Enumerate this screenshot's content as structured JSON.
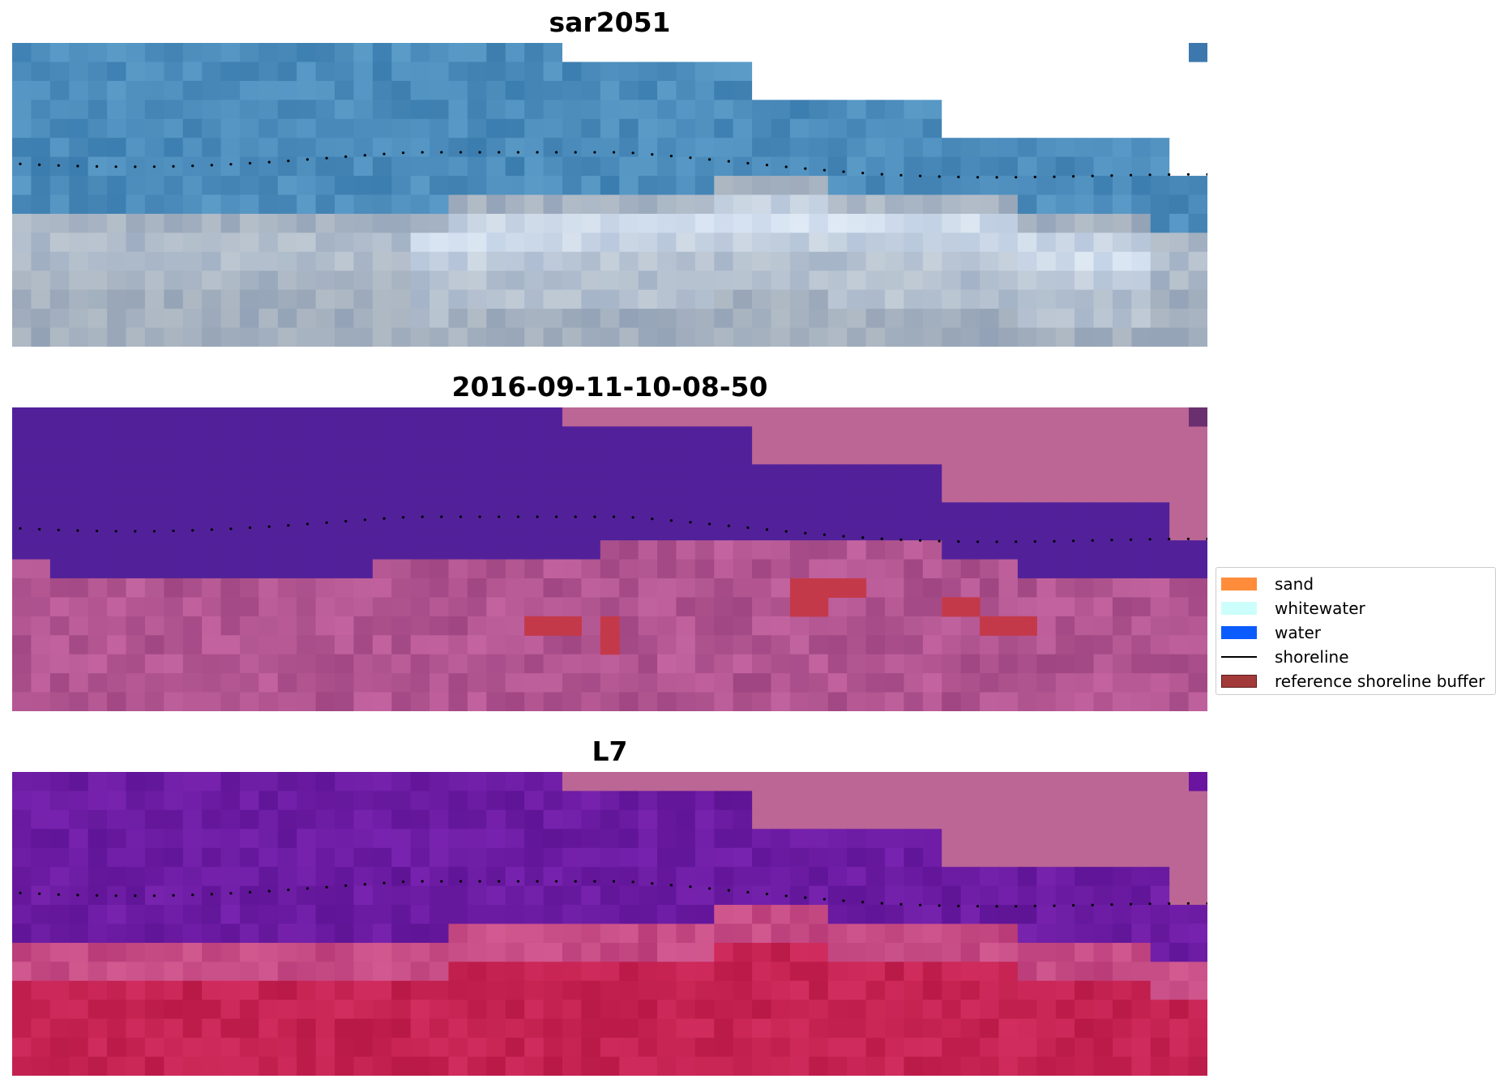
{
  "panels": [
    {
      "title": "sar2051",
      "kind": "rgb"
    },
    {
      "title": "2016-09-11-10-08-50",
      "kind": "class"
    },
    {
      "title": "L7",
      "kind": "index"
    }
  ],
  "legend": {
    "items": [
      {
        "label": "sand",
        "type": "patch",
        "color": "#ff8c3a"
      },
      {
        "label": "whitewater",
        "type": "patch",
        "color": "#ccfffb"
      },
      {
        "label": "water",
        "type": "patch",
        "color": "#0a5cff"
      },
      {
        "label": "shoreline",
        "type": "line",
        "color": "#000000"
      },
      {
        "label": "reference shoreline buffer",
        "type": "patch",
        "color": "#a33a3a"
      }
    ]
  },
  "colors": {
    "nodata": "#bc6695",
    "water_class": "#52219a",
    "buffer": "#c4394a"
  }
}
